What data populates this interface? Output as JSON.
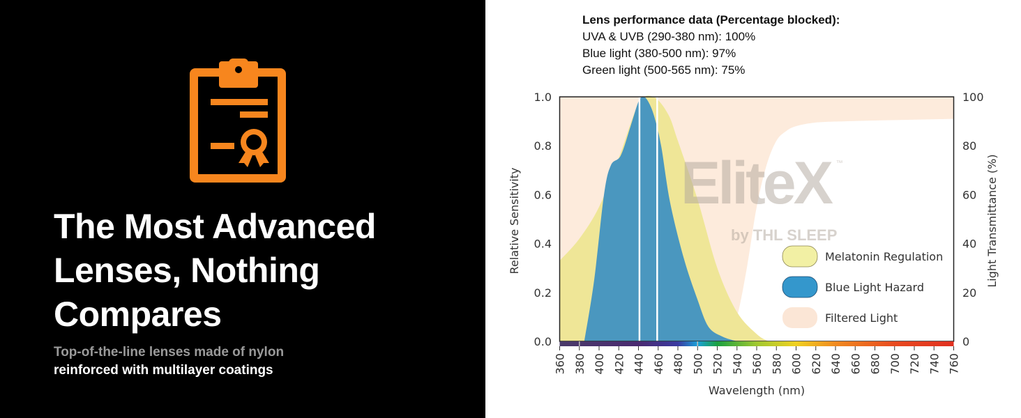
{
  "left_panel": {
    "icon": "clipboard-certificate-icon",
    "icon_color": "#f7861e",
    "title_lines": [
      "The Most Advanced",
      "Lenses, Nothing",
      "Compares"
    ],
    "subtitle_line1": "Top-of-the-line lenses made of nylon",
    "subtitle_line2": "reinforced with multilayer coatings"
  },
  "performance": {
    "heading": "Lens performance data (Percentage blocked):",
    "lines": [
      "UVA & UVB (290-380 nm): 100%",
      "Blue light (380-500 nm): 97%",
      "Green light (500-565 nm): 75%"
    ]
  },
  "watermark": {
    "brand": "EliteX",
    "tm": "™",
    "byline": "by THL SLEEP",
    "reg": "®"
  },
  "chart_data": {
    "type": "area",
    "xlabel": "Wavelength (nm)",
    "ylabel": "Relative Sensitivity",
    "y2label": "Light Transmittance (%)",
    "xlim": [
      360,
      760
    ],
    "ylim": [
      0,
      1.0
    ],
    "y2lim": [
      0,
      100
    ],
    "xticks": [
      "360",
      "380",
      "400",
      "420",
      "440",
      "460",
      "480",
      "500",
      "520",
      "540",
      "560",
      "580",
      "600",
      "620",
      "640",
      "660",
      "680",
      "700",
      "720",
      "740",
      "760"
    ],
    "yticks": [
      "0.0",
      "0.2",
      "0.4",
      "0.6",
      "0.8",
      "1.0"
    ],
    "y2ticks": [
      "0",
      "20",
      "40",
      "60",
      "80",
      "100"
    ],
    "markers_nm": [
      441,
      459
    ],
    "legend_position": "bottom-right",
    "series": [
      {
        "name": "Melatonin Regulation",
        "color": "#efe697",
        "x": [
          360,
          380,
          400,
          420,
          440,
          455,
          470,
          480,
          500,
          520,
          540,
          560,
          572
        ],
        "y": [
          0.33,
          0.42,
          0.55,
          0.75,
          0.97,
          1.0,
          0.93,
          0.82,
          0.58,
          0.3,
          0.12,
          0.03,
          0
        ]
      },
      {
        "name": "Blue Light Hazard",
        "color": "#4a97bf",
        "x": [
          385,
          395,
          405,
          412,
          422,
          432,
          440,
          445,
          450,
          456,
          463,
          472,
          486,
          500,
          511,
          525,
          540
        ],
        "y": [
          0,
          0.25,
          0.6,
          0.72,
          0.76,
          0.88,
          0.98,
          1.0,
          0.98,
          0.92,
          0.8,
          0.57,
          0.34,
          0.17,
          0.06,
          0.02,
          0
        ]
      },
      {
        "name": "Filtered Light",
        "color": "#fdebdc",
        "axis": "y2",
        "x": [
          360,
          520,
          530,
          540,
          550,
          560,
          570,
          580,
          590,
          600,
          620,
          650,
          700,
          760
        ],
        "y": [
          0,
          0,
          2,
          10,
          30,
          55,
          72,
          82,
          86,
          88,
          89.5,
          90,
          90.5,
          91
        ]
      }
    ]
  }
}
